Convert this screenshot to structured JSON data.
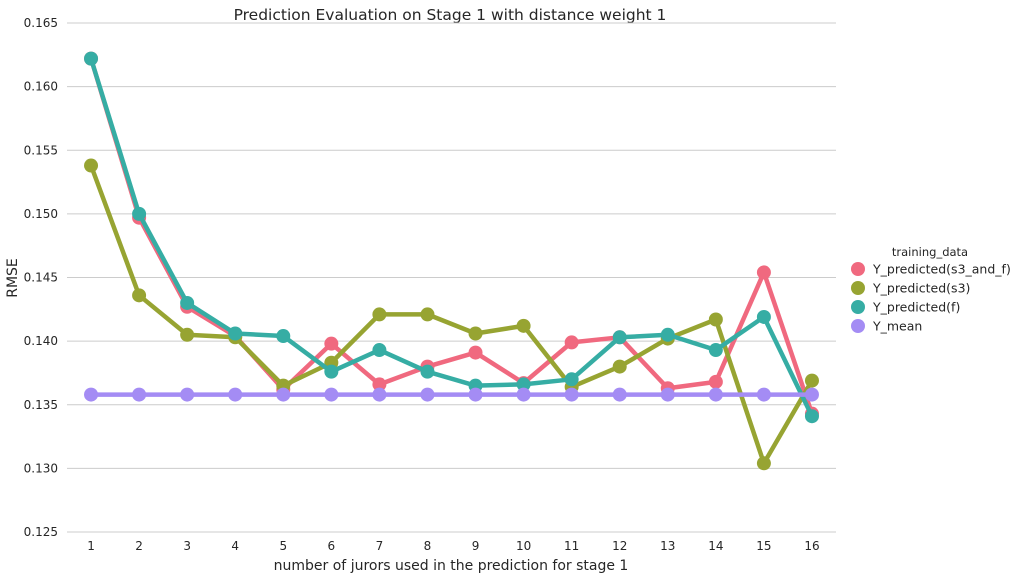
{
  "chart_data": {
    "type": "line",
    "title": "Prediction Evaluation on Stage 1 with distance weight 1",
    "xlabel": "number of jurors used in the prediction for stage 1",
    "ylabel": "RMSE",
    "categories": [
      "1",
      "2",
      "3",
      "4",
      "5",
      "6",
      "7",
      "8",
      "9",
      "10",
      "11",
      "12",
      "13",
      "14",
      "15",
      "16"
    ],
    "ylim": [
      0.125,
      0.165
    ],
    "yticks": [
      "0.125",
      "0.130",
      "0.135",
      "0.140",
      "0.145",
      "0.150",
      "0.155",
      "0.160",
      "0.165"
    ],
    "grid": "horizontal",
    "legend": {
      "title": "training_data",
      "placement": "right"
    },
    "series": [
      {
        "name": "Y_predicted(s3_and_f)",
        "color": "#f0697f",
        "values": [
          0.1622,
          0.1497,
          0.1427,
          0.1404,
          0.1362,
          0.1398,
          0.1366,
          0.138,
          0.1391,
          0.1367,
          0.1399,
          0.1403,
          0.1363,
          0.1368,
          0.1454,
          0.1343
        ]
      },
      {
        "name": "Y_predicted(s3)",
        "color": "#97a432",
        "values": [
          0.1538,
          0.1436,
          0.1405,
          0.1403,
          0.1365,
          0.1383,
          0.1421,
          0.1421,
          0.1406,
          0.1412,
          0.1364,
          0.138,
          0.1402,
          0.1417,
          0.1304,
          0.1369
        ]
      },
      {
        "name": "Y_predicted(f)",
        "color": "#36ada4",
        "values": [
          0.1622,
          0.15,
          0.143,
          0.1406,
          0.1404,
          0.1376,
          0.1393,
          0.1376,
          0.1365,
          0.1366,
          0.137,
          0.1403,
          0.1405,
          0.1393,
          0.1419,
          0.1341
        ]
      },
      {
        "name": "Y_mean",
        "color": "#a48cf4",
        "values": [
          0.1358,
          0.1358,
          0.1358,
          0.1358,
          0.1358,
          0.1358,
          0.1358,
          0.1358,
          0.1358,
          0.1358,
          0.1358,
          0.1358,
          0.1358,
          0.1358,
          0.1358,
          0.1358
        ]
      }
    ]
  }
}
